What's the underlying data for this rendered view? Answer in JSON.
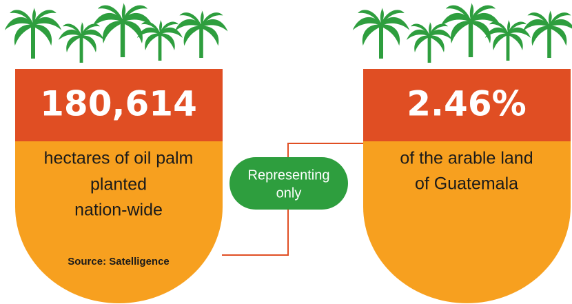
{
  "panels": [
    {
      "value": "180,614",
      "description": [
        "hectares of oil palm",
        "planted",
        "nation-wide"
      ],
      "source": "Source: Satelligence"
    },
    {
      "value": "2.46%",
      "description": [
        "of the arable land",
        "of Guatemala"
      ]
    }
  ],
  "connector": {
    "lines": [
      "Representing",
      "only"
    ]
  }
}
